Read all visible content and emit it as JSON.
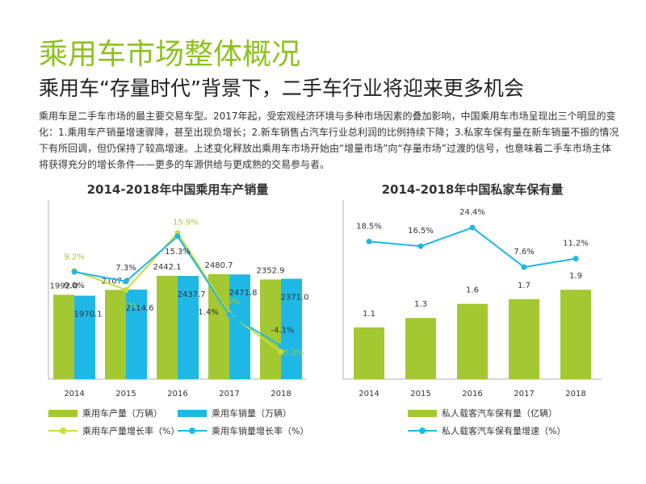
{
  "slide": {
    "title": "乘用车市场整体概况",
    "subtitle": "乘用车“存量时代”背景下，二手车行业将迎来更多机会",
    "body": "乘用车是二手车市场的最主要交易车型。2017年起，受宏观经济环境与多种市场因素的叠加影响，中国乘用车市场呈现出三个明显的变化：1.乘用车产销量增速骤降，甚至出现负增长；2.新车销售占汽车行业总利润的比例持续下降；3.私家车保有量在新车销量不振的情况下有所回调，但仍保持了较高增速。上述变化释放出乘用车市场开始由“增量市场”向“存量市场”过渡的信号，也意味着二手车市场主体将获得充分的增长条件——更多的车源供给与更成熟的交易参与者。"
  },
  "colors": {
    "green": "#a4c832",
    "lime_line": "#c8de3c",
    "blue": "#1fb8e6",
    "title_green": "#8dc21f"
  },
  "chart_data": [
    {
      "type": "bar",
      "title": "2014-2018年中国乘用车产销量",
      "categories": [
        "2014",
        "2015",
        "2016",
        "2017",
        "2018"
      ],
      "series": [
        {
          "name": "乘用车产量（万辆）",
          "kind": "bar",
          "color": "#a4c832",
          "values": [
            1992.0,
            2107.9,
            2442.1,
            2480.7,
            2352.9
          ],
          "labels": [
            "1992.0",
            "2107.9",
            "2442.1",
            "2480.7",
            "2352.9"
          ]
        },
        {
          "name": "乘用车销量（万辆）",
          "kind": "bar",
          "color": "#1fb8e6",
          "values": [
            1970.1,
            2114.6,
            2437.7,
            2471.8,
            2371.0
          ],
          "labels": [
            "1970.1",
            "2114.6",
            "2437.7",
            "2471.8",
            "2371.0"
          ]
        },
        {
          "name": "乘用车产量增长率（%）",
          "kind": "line",
          "color": "#c8de3c",
          "values": [
            9.2,
            5.8,
            15.9,
            1.6,
            -5.2
          ],
          "labels": [
            "9.2%",
            "5.8%",
            "15.9%",
            "1.6%",
            "-5.2%"
          ]
        },
        {
          "name": "乘用车销量增长率（%）",
          "kind": "line",
          "color": "#1fb8e6",
          "values": [
            9.0,
            7.3,
            15.3,
            1.4,
            -4.1
          ],
          "labels": [
            "9.0%",
            "7.3%",
            "15.3%",
            "1.4%",
            "-4.1%"
          ]
        }
      ],
      "ylim": [
        0,
        4000
      ],
      "y2lim": [
        -10,
        20
      ],
      "grid": false,
      "legend": "bottom"
    },
    {
      "type": "bar",
      "title": "2014-2018年中国私家车保有量",
      "categories": [
        "2014",
        "2015",
        "2016",
        "2017",
        "2018"
      ],
      "series": [
        {
          "name": "私人载客汽车保有量（亿辆）",
          "kind": "bar",
          "color": "#a4c832",
          "values": [
            1.1,
            1.3,
            1.6,
            1.7,
            1.9
          ],
          "labels": [
            "1.1",
            "1.3",
            "1.6",
            "1.7",
            "1.9"
          ]
        },
        {
          "name": "私人载客汽车保有量增速（%）",
          "kind": "line",
          "color": "#1fb8e6",
          "values": [
            18.5,
            16.5,
            24.4,
            7.6,
            11.2
          ],
          "labels": [
            "18.5%",
            "16.5%",
            "24.4%",
            "7.6%",
            "11.2%"
          ]
        }
      ],
      "ylim": [
        0,
        3.6
      ],
      "y2lim": [
        -40,
        32
      ],
      "grid": false,
      "legend": "bottom"
    }
  ]
}
